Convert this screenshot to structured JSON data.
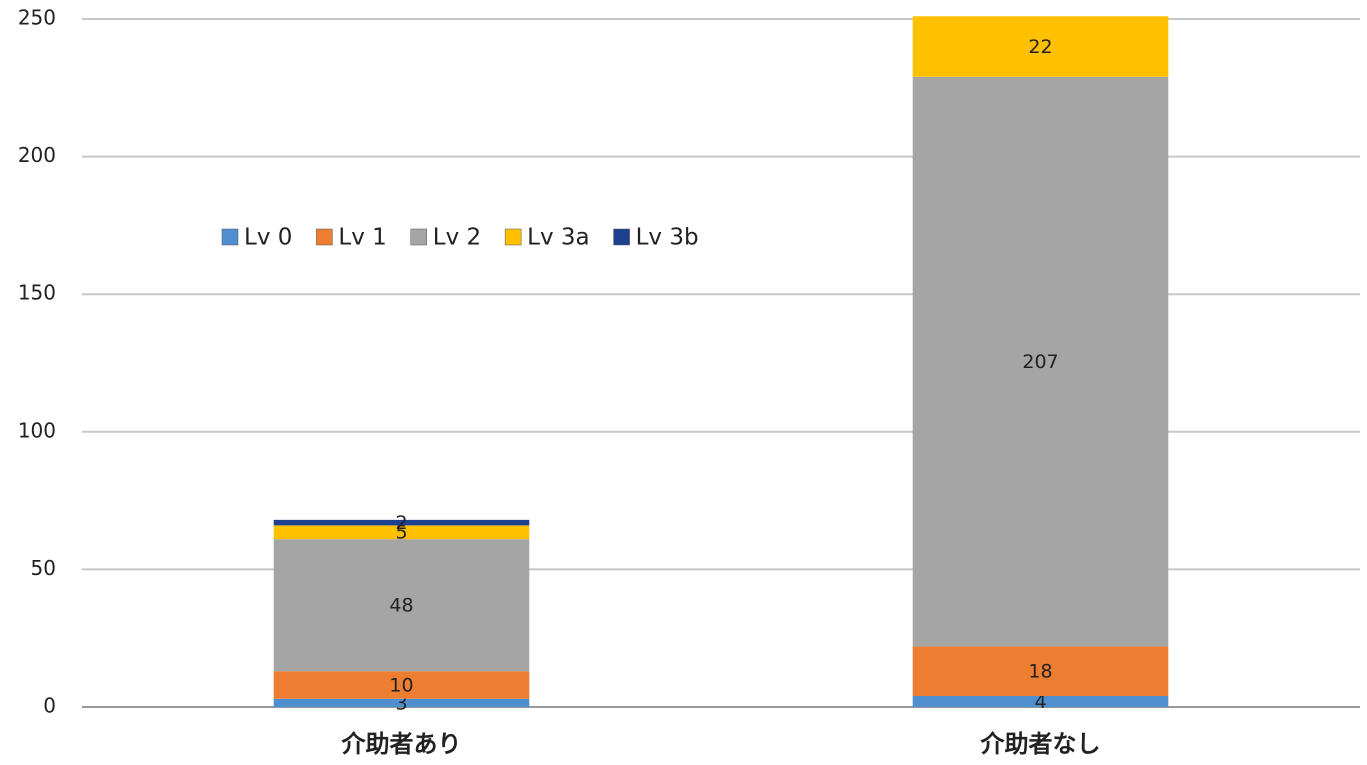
{
  "chart_data": {
    "type": "stacked_bar",
    "categories": [
      "介助者あり",
      "介助者なし"
    ],
    "series": [
      {
        "name": "Lv 0",
        "color": "#4f8fd0",
        "values": [
          3,
          4
        ]
      },
      {
        "name": "Lv 1",
        "color": "#ed7d31",
        "values": [
          10,
          18
        ]
      },
      {
        "name": "Lv 2",
        "color": "#a5a5a5",
        "values": [
          48,
          207
        ]
      },
      {
        "name": "Lv 3a",
        "color": "#ffc000",
        "values": [
          5,
          22
        ]
      },
      {
        "name": "Lv 3b",
        "color": "#1f3f8f",
        "values": [
          2,
          null
        ]
      }
    ],
    "ylim": [
      0,
      250
    ],
    "yticks": [
      0,
      50,
      100,
      150,
      200,
      250
    ],
    "grid": true,
    "legend": "upper-left"
  }
}
